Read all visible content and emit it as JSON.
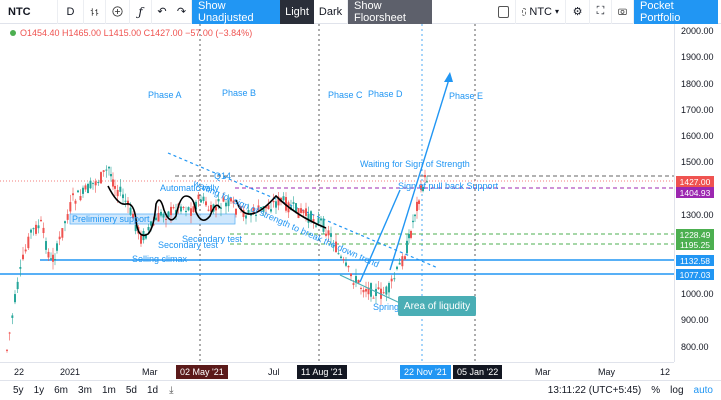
{
  "toolbar": {
    "symbol": "NTC",
    "interval": "D",
    "show_unadjusted": "Show Unadjusted",
    "light": "Light",
    "dark": "Dark",
    "show_floorsheet": "Show Floorsheet",
    "compare_symbol": "NTC",
    "pocket_portfolio": "Pocket Portfolio"
  },
  "legend": {
    "ohlc": "O1454.40 H1465.00 L1415.00 C1427.00 −57.00 (−3.84%)"
  },
  "price_axis": {
    "labels": [
      "2000.00",
      "1900.00",
      "1800.00",
      "1700.00",
      "1600.00",
      "1500.00",
      "1300.00",
      "1000.00",
      "900.00",
      "800.00"
    ],
    "badges": [
      {
        "text": "1427.00",
        "color": "#ef5350"
      },
      {
        "text": "1404.93",
        "color": "#9c27b0"
      },
      {
        "text": "1228.49",
        "color": "#4caf50"
      },
      {
        "text": "1195.25",
        "color": "#4caf50"
      },
      {
        "text": "1132.58",
        "color": "#2196f3"
      },
      {
        "text": "1077.03",
        "color": "#2196f3"
      }
    ]
  },
  "time_axis": {
    "labels": [
      "22",
      "2021",
      "Mar",
      "Jul",
      "Mar",
      "May",
      "12"
    ],
    "badges": [
      "02 May '21",
      "11 Aug '21",
      "22 Nov '21",
      "05 Jan '22"
    ]
  },
  "annotations": {
    "phase_a": "Phase A",
    "phase_b": "Phase B",
    "phase_c": "Phase C",
    "phase_d": "Phase D",
    "phase_e": "Phase E",
    "waiting_sos": "Waiting for Sign of  Strength",
    "pull_back": "Sign of pull back Support",
    "automatic_rally": "Automatic rally",
    "preliminary": "Preliminery support",
    "secondary_test": "Secondary test",
    "secondary_test2": "Secondary test",
    "selling_climax": "Selling climax",
    "spring": "Spring",
    "waiting_break": "waiting for sign of strength to break the down trend",
    "area_liquidity": "Area of liqudity",
    "ar_short": "Q14"
  },
  "bottom": {
    "ranges": [
      "5y",
      "1y",
      "6m",
      "3m",
      "1m",
      "5d",
      "1d"
    ],
    "clock": "13:11:22 (UTC+5:45)",
    "percent": "%",
    "log": "log",
    "auto": "auto"
  }
}
